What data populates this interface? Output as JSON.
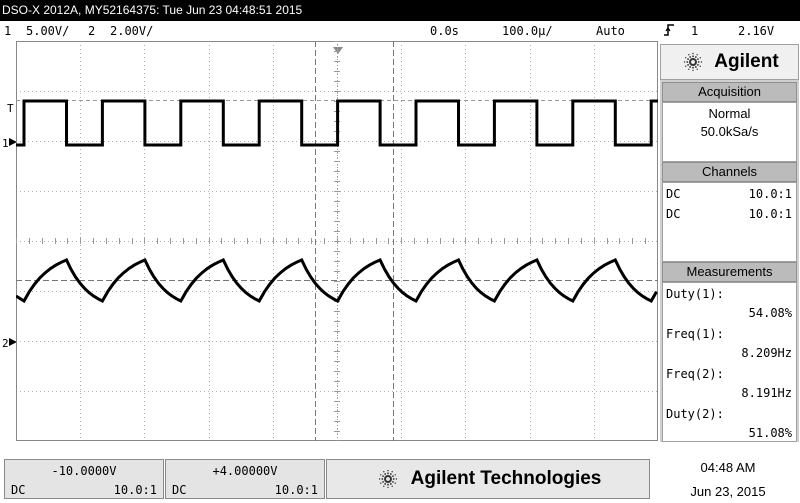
{
  "title": "DSO-X 2012A, MY52164375: Tue Jun 23 04:48:51 2015",
  "status": {
    "ch1_num": "1",
    "ch1_scale": "5.00V/",
    "ch2_num": "2",
    "ch2_scale": "2.00V/",
    "time_delay": "0.0s",
    "time_scale": "100.0µ/",
    "trigger_mode": "Auto",
    "trigger_icon": "rising-edge-icon",
    "trigger_source": "1",
    "trigger_level": "2.16V"
  },
  "markers": {
    "trigger": "T",
    "ch1": "1",
    "ch2": "2"
  },
  "brand": {
    "name": "Agilent",
    "logo": "agilent-spark-icon"
  },
  "acquisition": {
    "header": "Acquisition",
    "mode": "Normal",
    "rate": "50.0kSa/s"
  },
  "channels": {
    "header": "Channels",
    "rows": [
      {
        "coupling": "DC",
        "probe": "10.0:1"
      },
      {
        "coupling": "DC",
        "probe": "10.0:1"
      }
    ]
  },
  "measurements": {
    "header": "Measurements",
    "items": [
      {
        "label": "Duty(1):",
        "value": "54.08%"
      },
      {
        "label": "Freq(1):",
        "value": "8.209Hz"
      },
      {
        "label": "Freq(2):",
        "value": "8.191Hz"
      },
      {
        "label": "Duty(2):",
        "value": "51.08%"
      }
    ]
  },
  "bottom": {
    "ch1": {
      "offset": "-10.0000V",
      "coupling": "DC",
      "probe": "10.0:1"
    },
    "ch2": {
      "offset": "+4.00000V",
      "coupling": "DC",
      "probe": "10.0:1"
    },
    "brand": "Agilent Technologies",
    "time": "04:48 AM",
    "date": "Jun 23, 2015"
  },
  "colors": {
    "background": "#ffffff",
    "trace": "#000000",
    "panel_header": "#bbbbbb",
    "sidebar": "#d0d0d0"
  }
}
